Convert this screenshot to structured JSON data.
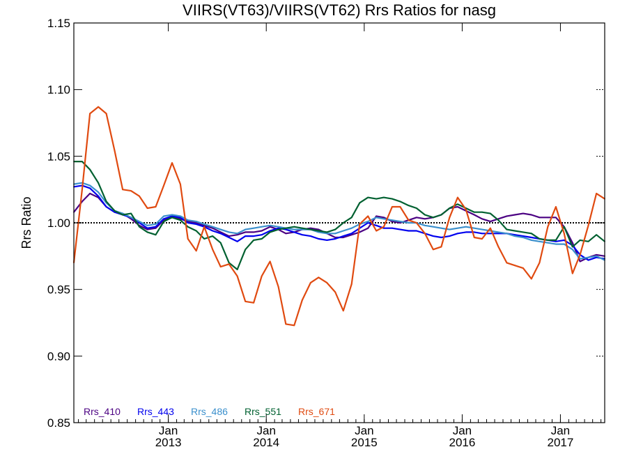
{
  "chart_data": {
    "type": "line",
    "title": "VIIRS(VT63)/VIIRS(VT62)  Rrs Ratios for nasg",
    "xlabel": "",
    "ylabel": "Rrs Ratio",
    "xlim": [
      "2012-01-15",
      "2017-06-15"
    ],
    "ylim": [
      0.85,
      1.15
    ],
    "y_ticks": [
      0.85,
      0.9,
      0.95,
      1.0,
      1.05,
      1.1,
      1.15
    ],
    "y_tick_labels": [
      "0.85",
      "0.90",
      "0.95",
      "1.00",
      "1.05",
      "1.10",
      "1.15"
    ],
    "x_ticks": [
      {
        "date": "2013-01-01",
        "month": "Jan",
        "year": "2013"
      },
      {
        "date": "2014-01-01",
        "month": "Jan",
        "year": "2014"
      },
      {
        "date": "2015-01-01",
        "month": "Jan",
        "year": "2015"
      },
      {
        "date": "2016-01-01",
        "month": "Jan",
        "year": "2016"
      },
      {
        "date": "2017-01-01",
        "month": "Jan",
        "year": "2017"
      }
    ],
    "reference_line": 1.0,
    "legend_placement": "bottom-left",
    "x": [
      "2012-01",
      "2012-02",
      "2012-03",
      "2012-04",
      "2012-05",
      "2012-06",
      "2012-07",
      "2012-08",
      "2012-09",
      "2012-10",
      "2012-11",
      "2012-12",
      "2013-01",
      "2013-02",
      "2013-03",
      "2013-04",
      "2013-05",
      "2013-06",
      "2013-07",
      "2013-08",
      "2013-09",
      "2013-10",
      "2013-11",
      "2013-12",
      "2014-01",
      "2014-02",
      "2014-03",
      "2014-04",
      "2014-05",
      "2014-06",
      "2014-07",
      "2014-08",
      "2014-09",
      "2014-10",
      "2014-11",
      "2014-12",
      "2015-01",
      "2015-02",
      "2015-03",
      "2015-04",
      "2015-05",
      "2015-06",
      "2015-07",
      "2015-08",
      "2015-09",
      "2015-10",
      "2015-11",
      "2015-12",
      "2016-01",
      "2016-02",
      "2016-03",
      "2016-04",
      "2016-05",
      "2016-06",
      "2016-07",
      "2016-08",
      "2016-09",
      "2016-10",
      "2016-11",
      "2016-12",
      "2017-01",
      "2017-02",
      "2017-03",
      "2017-04",
      "2017-05",
      "2017-06"
    ],
    "series": [
      {
        "name": "Rrs_410",
        "color": "#4b0082",
        "values": [
          1.008,
          1.016,
          1.022,
          1.019,
          1.012,
          1.008,
          1.007,
          1.003,
          0.998,
          0.995,
          0.996,
          1.002,
          1.004,
          1.003,
          1.001,
          1.0,
          0.998,
          0.996,
          0.993,
          0.99,
          0.991,
          0.993,
          0.993,
          0.994,
          0.997,
          0.995,
          0.992,
          0.993,
          0.995,
          0.996,
          0.995,
          0.992,
          0.989,
          0.989,
          0.991,
          0.993,
          0.996,
          1.005,
          1.004,
          1.001,
          1.0,
          1.002,
          1.004,
          1.003,
          1.004,
          1.006,
          1.011,
          1.012,
          1.009,
          1.006,
          1.003,
          1.001,
          1.003,
          1.005,
          1.006,
          1.007,
          1.006,
          1.004,
          1.004,
          1.004,
          0.997,
          0.985,
          0.971,
          0.974,
          0.976,
          0.975
        ]
      },
      {
        "name": "Rrs_443",
        "color": "#0000ee",
        "values": [
          1.027,
          1.028,
          1.026,
          1.02,
          1.012,
          1.008,
          1.006,
          1.004,
          1.0,
          0.996,
          0.997,
          1.003,
          1.005,
          1.004,
          1.0,
          0.999,
          0.997,
          0.994,
          0.992,
          0.989,
          0.986,
          0.99,
          0.99,
          0.991,
          0.994,
          0.996,
          0.995,
          0.993,
          0.991,
          0.99,
          0.988,
          0.987,
          0.988,
          0.99,
          0.992,
          0.996,
          1.0,
          0.998,
          0.996,
          0.996,
          0.995,
          0.994,
          0.994,
          0.992,
          0.99,
          0.989,
          0.99,
          0.992,
          0.993,
          0.993,
          0.992,
          0.992,
          0.992,
          0.992,
          0.991,
          0.99,
          0.989,
          0.988,
          0.987,
          0.986,
          0.987,
          0.983,
          0.976,
          0.972,
          0.974,
          0.973
        ]
      },
      {
        "name": "Rrs_486",
        "color": "#3a8fcc",
        "values": [
          1.029,
          1.03,
          1.028,
          1.023,
          1.015,
          1.009,
          1.007,
          1.004,
          1.001,
          0.998,
          0.999,
          1.005,
          1.006,
          1.005,
          1.002,
          1.001,
          0.999,
          0.997,
          0.995,
          0.993,
          0.992,
          0.995,
          0.996,
          0.997,
          0.998,
          0.997,
          0.996,
          0.995,
          0.995,
          0.995,
          0.993,
          0.992,
          0.992,
          0.994,
          0.996,
          0.999,
          1.001,
          1.004,
          1.003,
          1.002,
          1.001,
          1.0,
          1.0,
          0.998,
          0.997,
          0.996,
          0.995,
          0.996,
          0.997,
          0.996,
          0.995,
          0.994,
          0.993,
          0.992,
          0.99,
          0.989,
          0.987,
          0.986,
          0.985,
          0.984,
          0.984,
          0.98,
          0.973,
          0.974,
          0.975,
          0.972
        ]
      },
      {
        "name": "Rrs_551",
        "color": "#006030",
        "values": [
          1.046,
          1.046,
          1.04,
          1.03,
          1.016,
          1.009,
          1.006,
          1.007,
          0.997,
          0.993,
          0.991,
          1.001,
          1.004,
          1.002,
          0.997,
          0.994,
          0.988,
          0.99,
          0.985,
          0.97,
          0.965,
          0.98,
          0.987,
          0.988,
          0.993,
          0.995,
          0.996,
          0.997,
          0.996,
          0.995,
          0.994,
          0.993,
          0.995,
          1.0,
          1.004,
          1.015,
          1.019,
          1.018,
          1.019,
          1.018,
          1.016,
          1.013,
          1.011,
          1.006,
          1.004,
          1.006,
          1.011,
          1.014,
          1.011,
          1.008,
          1.008,
          1.007,
          1.002,
          0.995,
          0.994,
          0.993,
          0.992,
          0.988,
          0.987,
          0.987,
          0.997,
          0.982,
          0.987,
          0.986,
          0.991,
          0.986
        ]
      },
      {
        "name": "Rrs_671",
        "color": "#e04a10",
        "values": [
          0.97,
          1.025,
          1.082,
          1.087,
          1.082,
          1.054,
          1.025,
          1.024,
          1.02,
          1.011,
          1.012,
          1.028,
          1.045,
          1.029,
          0.988,
          0.979,
          0.997,
          0.98,
          0.967,
          0.969,
          0.96,
          0.941,
          0.94,
          0.96,
          0.971,
          0.952,
          0.924,
          0.923,
          0.942,
          0.955,
          0.959,
          0.955,
          0.948,
          0.934,
          0.954,
          0.999,
          1.005,
          0.994,
          0.997,
          1.012,
          1.012,
          1.002,
          1.0,
          0.992,
          0.98,
          0.982,
          1.004,
          1.019,
          1.01,
          0.989,
          0.988,
          0.996,
          0.982,
          0.97,
          0.968,
          0.966,
          0.958,
          0.97,
          0.997,
          1.012,
          0.992,
          0.962,
          0.976,
          0.998,
          1.022,
          1.018
        ]
      }
    ]
  }
}
